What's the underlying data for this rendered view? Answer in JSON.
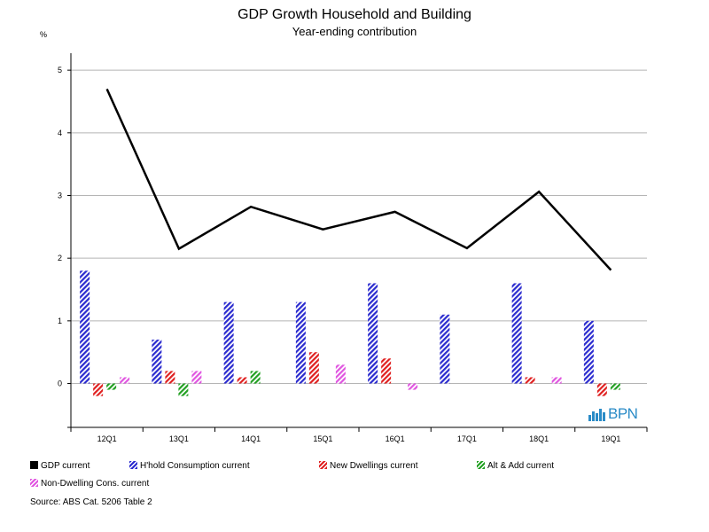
{
  "chart_data": {
    "type": "bar",
    "title": "GDP Growth Household and Building",
    "subtitle": "Year-ending contribution",
    "ylabel": "%",
    "xlabel": "",
    "ylim": [
      -0.7,
      5.2
    ],
    "yticks": [
      0,
      1,
      2,
      3,
      4,
      5
    ],
    "grid": true,
    "categories": [
      "12Q1",
      "13Q1",
      "14Q1",
      "15Q1",
      "16Q1",
      "17Q1",
      "18Q1",
      "19Q1"
    ],
    "line_series": {
      "name": "GDP current",
      "type": "line",
      "color": "#000000",
      "values": [
        4.7,
        2.15,
        2.82,
        2.46,
        2.74,
        2.16,
        3.06,
        1.81
      ]
    },
    "series": [
      {
        "name": "H'hold Consumption current",
        "color": "#2b2bcf",
        "values": [
          1.8,
          0.7,
          1.3,
          1.3,
          1.6,
          1.1,
          1.6,
          1.0
        ]
      },
      {
        "name": "New Dwellings current",
        "color": "#e02020",
        "values": [
          -0.2,
          0.2,
          0.1,
          0.5,
          0.4,
          0.0,
          0.1,
          -0.2
        ]
      },
      {
        "name": "Alt & Add current",
        "color": "#22a022",
        "values": [
          -0.1,
          -0.2,
          0.2,
          0.0,
          0.0,
          0.0,
          0.0,
          -0.1
        ]
      },
      {
        "name": "Non-Dwelling Cons. current",
        "color": "#e055e0",
        "values": [
          0.1,
          0.2,
          0.0,
          0.3,
          -0.1,
          0.0,
          0.1,
          0.0
        ]
      }
    ]
  },
  "legend": {
    "gdp": "GDP current",
    "hhold": "H'hold Consumption current",
    "dwellings": "New Dwellings current",
    "altadd": "Alt & Add current",
    "nondwelling": "Non-Dwelling Cons. current"
  },
  "source": "Source: ABS Cat. 5206 Table 2",
  "logo": "BPN"
}
